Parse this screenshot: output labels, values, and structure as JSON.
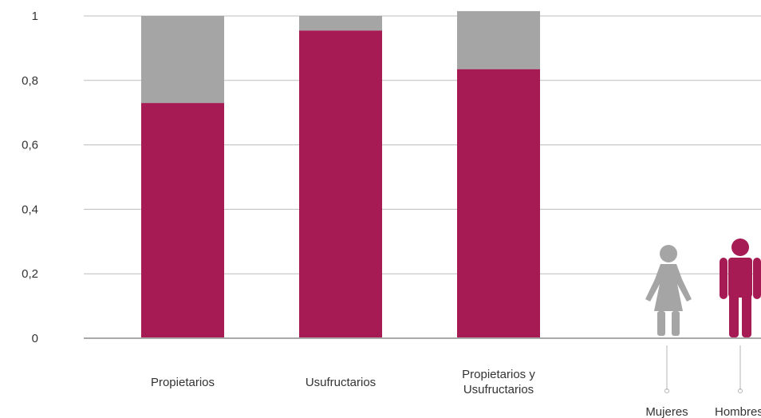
{
  "chart_data": {
    "type": "bar",
    "stacked": true,
    "categories": [
      "Propietarios",
      "Usufructarios",
      "Propietarios y\nUsufructarios"
    ],
    "series": [
      {
        "key": "hombres",
        "values": [
          0.73,
          0.955,
          0.835
        ],
        "color": "#a61b54"
      },
      {
        "key": "mujeres",
        "values": [
          0.27,
          0.045,
          0.18
        ],
        "color": "#a5a5a5"
      }
    ],
    "ylim": [
      0,
      1
    ],
    "yticks": [
      0,
      0.2,
      0.4,
      0.6,
      0.8,
      1
    ],
    "ytick_labels": [
      "0",
      "0,2",
      "0,4",
      "0,6",
      "0,8",
      "1"
    ],
    "grid": true,
    "legend": {
      "placement": "bottom-right",
      "items": [
        {
          "label": "Mujeres",
          "icon": "woman-icon",
          "color": "#a5a5a5"
        },
        {
          "label": "Hombres",
          "icon": "man-icon",
          "color": "#a61b54"
        }
      ]
    }
  }
}
